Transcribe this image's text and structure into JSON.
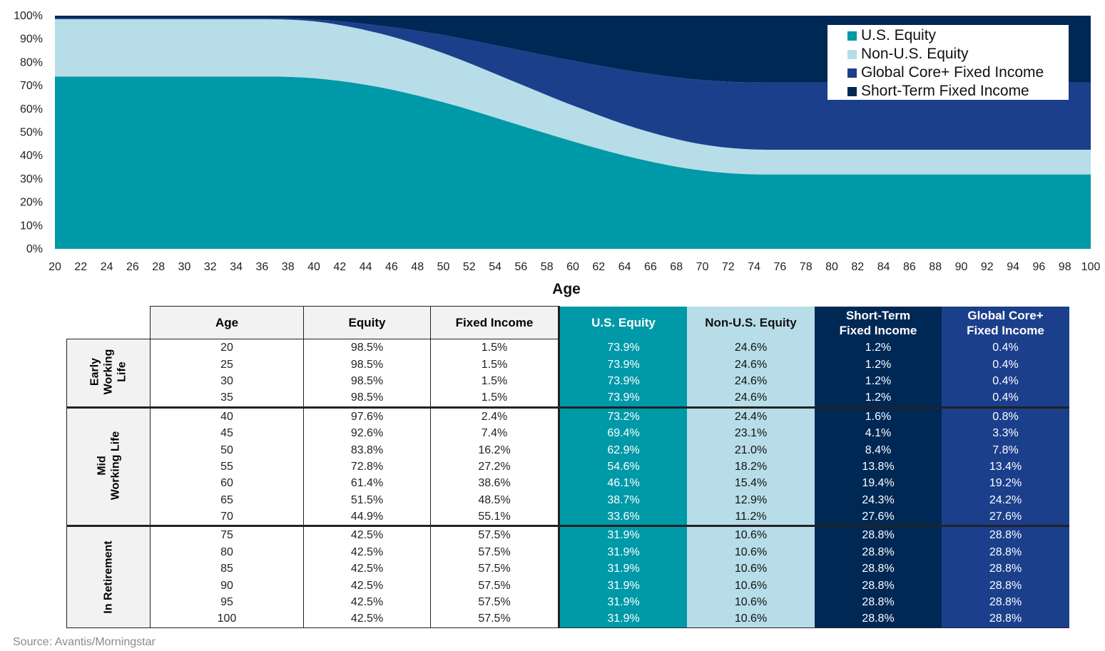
{
  "chart_data": {
    "type": "area",
    "stacked": true,
    "xlabel": "Age",
    "ylabel": "",
    "xlim": [
      20,
      100
    ],
    "ylim": [
      0,
      100
    ],
    "x_ticks": [
      20,
      22,
      24,
      26,
      28,
      30,
      32,
      34,
      36,
      38,
      40,
      42,
      44,
      46,
      48,
      50,
      52,
      54,
      56,
      58,
      60,
      62,
      64,
      66,
      68,
      70,
      72,
      74,
      76,
      78,
      80,
      82,
      84,
      86,
      88,
      90,
      92,
      94,
      96,
      98,
      100
    ],
    "y_ticks": [
      "0%",
      "10%",
      "20%",
      "30%",
      "40%",
      "50%",
      "60%",
      "70%",
      "80%",
      "90%",
      "100%"
    ],
    "grid": false,
    "legend_position": "top-right",
    "x": [
      20,
      25,
      30,
      35,
      40,
      45,
      50,
      55,
      60,
      65,
      70,
      75,
      80,
      85,
      90,
      95,
      100
    ],
    "series": [
      {
        "name": "U.S. Equity",
        "color": "#0099a8",
        "values": [
          73.9,
          73.9,
          73.9,
          73.9,
          73.2,
          69.4,
          62.9,
          54.6,
          46.1,
          38.7,
          33.6,
          31.9,
          31.9,
          31.9,
          31.9,
          31.9,
          31.9
        ]
      },
      {
        "name": "Non-U.S. Equity",
        "color": "#b7dde8",
        "values": [
          24.6,
          24.6,
          24.6,
          24.6,
          24.4,
          23.1,
          21.0,
          18.2,
          15.4,
          12.9,
          11.2,
          10.6,
          10.6,
          10.6,
          10.6,
          10.6,
          10.6
        ]
      },
      {
        "name": "Global Core+ Fixed Income",
        "color": "#1c3f8c",
        "values": [
          0.4,
          0.4,
          0.4,
          0.4,
          0.8,
          3.3,
          7.8,
          13.4,
          19.2,
          24.2,
          27.6,
          28.8,
          28.8,
          28.8,
          28.8,
          28.8,
          28.8
        ]
      },
      {
        "name": "Short-Term Fixed Income",
        "color": "#002855",
        "values": [
          1.2,
          1.2,
          1.2,
          1.2,
          1.6,
          4.1,
          8.4,
          13.8,
          19.4,
          24.3,
          27.6,
          28.8,
          28.8,
          28.8,
          28.8,
          28.8,
          28.8
        ]
      }
    ]
  },
  "table": {
    "headers": [
      "Age",
      "Equity",
      "Fixed Income",
      "U.S. Equity",
      "Non-U.S. Equity",
      "Short-Term\nFixed Income",
      "Global Core+\nFixed Income"
    ],
    "groups": [
      {
        "label": "Early\nWorking\nLife",
        "rows": [
          [
            "20",
            "98.5%",
            "1.5%",
            "73.9%",
            "24.6%",
            "1.2%",
            "0.4%"
          ],
          [
            "25",
            "98.5%",
            "1.5%",
            "73.9%",
            "24.6%",
            "1.2%",
            "0.4%"
          ],
          [
            "30",
            "98.5%",
            "1.5%",
            "73.9%",
            "24.6%",
            "1.2%",
            "0.4%"
          ],
          [
            "35",
            "98.5%",
            "1.5%",
            "73.9%",
            "24.6%",
            "1.2%",
            "0.4%"
          ]
        ]
      },
      {
        "label": "Mid\nWorking Life",
        "rows": [
          [
            "40",
            "97.6%",
            "2.4%",
            "73.2%",
            "24.4%",
            "1.6%",
            "0.8%"
          ],
          [
            "45",
            "92.6%",
            "7.4%",
            "69.4%",
            "23.1%",
            "4.1%",
            "3.3%"
          ],
          [
            "50",
            "83.8%",
            "16.2%",
            "62.9%",
            "21.0%",
            "8.4%",
            "7.8%"
          ],
          [
            "55",
            "72.8%",
            "27.2%",
            "54.6%",
            "18.2%",
            "13.8%",
            "13.4%"
          ],
          [
            "60",
            "61.4%",
            "38.6%",
            "46.1%",
            "15.4%",
            "19.4%",
            "19.2%"
          ],
          [
            "65",
            "51.5%",
            "48.5%",
            "38.7%",
            "12.9%",
            "24.3%",
            "24.2%"
          ],
          [
            "70",
            "44.9%",
            "55.1%",
            "33.6%",
            "11.2%",
            "27.6%",
            "27.6%"
          ]
        ]
      },
      {
        "label": "In Retirement",
        "rows": [
          [
            "75",
            "42.5%",
            "57.5%",
            "31.9%",
            "10.6%",
            "28.8%",
            "28.8%"
          ],
          [
            "80",
            "42.5%",
            "57.5%",
            "31.9%",
            "10.6%",
            "28.8%",
            "28.8%"
          ],
          [
            "85",
            "42.5%",
            "57.5%",
            "31.9%",
            "10.6%",
            "28.8%",
            "28.8%"
          ],
          [
            "90",
            "42.5%",
            "57.5%",
            "31.9%",
            "10.6%",
            "28.8%",
            "28.8%"
          ],
          [
            "95",
            "42.5%",
            "57.5%",
            "31.9%",
            "10.6%",
            "28.8%",
            "28.8%"
          ],
          [
            "100",
            "42.5%",
            "57.5%",
            "31.9%",
            "10.6%",
            "28.8%",
            "28.8%"
          ]
        ]
      }
    ]
  },
  "source": "Source: Avantis/Morningstar"
}
